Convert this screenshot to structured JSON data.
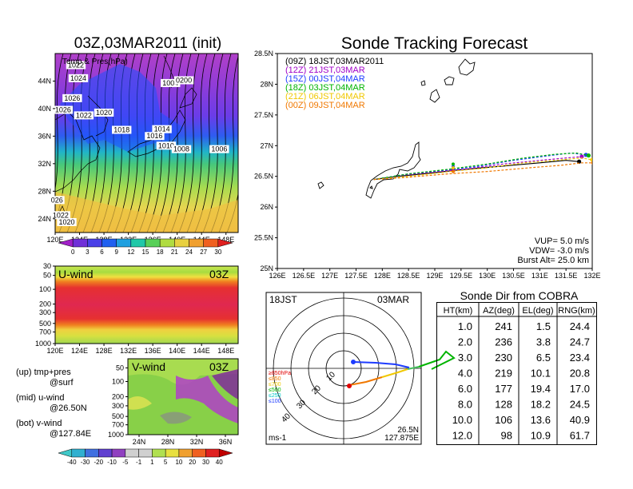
{
  "top_left_title": "03Z,03MAR2011 (init)",
  "main_title": "Sonde Tracking Forecast",
  "map_small": {
    "legend_text": "Temp & Pres(hPa)",
    "x_ticks": [
      "120E",
      "124E",
      "128E",
      "132E",
      "136E",
      "140E",
      "144E",
      "148E"
    ],
    "y_ticks": [
      "44N",
      "40N",
      "36N",
      "32N",
      "28N",
      "24N"
    ],
    "pressure_labels": [
      {
        "text": "1022",
        "lon": 123.4,
        "lat": 46.2
      },
      {
        "text": "1024",
        "lon": 123.8,
        "lat": 44.3
      },
      {
        "text": "1026",
        "lon": 122.8,
        "lat": 41.4
      },
      {
        "text": "1026",
        "lon": 121.3,
        "lat": 39.7
      },
      {
        "text": "1022",
        "lon": 124.7,
        "lat": 38.9
      },
      {
        "text": "1020",
        "lon": 128.0,
        "lat": 39.3
      },
      {
        "text": "1018",
        "lon": 130.9,
        "lat": 36.8
      },
      {
        "text": "1014",
        "lon": 137.5,
        "lat": 36.9
      },
      {
        "text": "1016",
        "lon": 136.3,
        "lat": 35.9
      },
      {
        "text": "1010",
        "lon": 138.2,
        "lat": 34.5
      },
      {
        "text": "1008",
        "lon": 140.7,
        "lat": 34.0
      },
      {
        "text": "1006",
        "lon": 146.9,
        "lat": 34.0
      },
      {
        "text": "1004",
        "lon": 138.9,
        "lat": 43.6
      },
      {
        "text": "0200",
        "lon": 141.1,
        "lat": 44.0
      },
      {
        "text": "026",
        "lon": 120.3,
        "lat": 26.6
      },
      {
        "text": "1022",
        "lon": 120.9,
        "lat": 24.4
      },
      {
        "text": "1020",
        "lon": 121.9,
        "lat": 23.4
      }
    ],
    "colorbar_labels": [
      "0",
      "3",
      "6",
      "9",
      "12",
      "15",
      "18",
      "21",
      "24",
      "27",
      "30"
    ]
  },
  "u_wind": {
    "label": "U-wind",
    "time": "03Z",
    "y_ticks": [
      "30",
      "50",
      "100",
      "200",
      "300",
      "500",
      "700",
      "1000"
    ],
    "x_ticks": [
      "120E",
      "124E",
      "128E",
      "132E",
      "136E",
      "140E",
      "144E",
      "148E"
    ]
  },
  "v_wind": {
    "label": "V-wind",
    "time": "03Z",
    "y_ticks": [
      "50",
      "100",
      "200",
      "300",
      "500",
      "700",
      "1000"
    ],
    "x_ticks": [
      "24N",
      "28N",
      "32N",
      "36N"
    ]
  },
  "notes": [
    {
      "line1": "(up) tmp+pres",
      "line2": "@surf"
    },
    {
      "line1": "(mid) u-wind",
      "line2": "@26.50N"
    },
    {
      "line1": "(bot) v-wind",
      "line2": "@127.84E"
    }
  ],
  "wind_colorbar_labels": [
    "-40",
    "-30",
    "-20",
    "-10",
    "-5",
    "-1",
    "1",
    "5",
    "10",
    "20",
    "30",
    "40"
  ],
  "track_map": {
    "x_ticks": [
      "126E",
      "126.5E",
      "127E",
      "127.5E",
      "128E",
      "128.5E",
      "129E",
      "129.5E",
      "130E",
      "130.5E",
      "131E",
      "131.5E",
      "132E"
    ],
    "y_ticks": [
      "28.5N",
      "28N",
      "27.5N",
      "27N",
      "26.5N",
      "26N",
      "25.5N",
      "25N"
    ],
    "legend": [
      {
        "text": "(09Z)  18JST,03MAR2011",
        "color": "#000000"
      },
      {
        "text": "(12Z)  21JST,03MAR",
        "color": "#a000c8"
      },
      {
        "text": "(15Z)  00JST,04MAR",
        "color": "#1e3cff"
      },
      {
        "text": "(18Z)  03JST,04MAR",
        "color": "#00b400"
      },
      {
        "text": "(21Z)  06JST,04MAR",
        "color": "#f0c800"
      },
      {
        "text": "(00Z)  09JST,04MAR",
        "color": "#f07800"
      }
    ],
    "params": [
      "VUP= 5.0 m/s",
      "VDW= -3.0 m/s",
      "Burst Alt= 25.0 km"
    ]
  },
  "polar": {
    "title_left": "18JST",
    "title_right": "03MAR",
    "ring_labels": [
      "10",
      "20",
      "30",
      "40"
    ],
    "level_labels": [
      {
        "text": "≥850hPa",
        "color": "#e00000"
      },
      {
        "text": "≤850",
        "color": "#f07800"
      },
      {
        "text": "≤700",
        "color": "#f0c800"
      },
      {
        "text": "≤500",
        "color": "#00b400"
      },
      {
        "text": "≤250",
        "color": "#00c8c8"
      },
      {
        "text": "≤100",
        "color": "#1e3cff"
      }
    ],
    "unit": "ms-1",
    "coord_lat": "26.5N",
    "coord_lon": "127.875E"
  },
  "table": {
    "title": "Sonde Dir from COBRA",
    "headers": [
      "HT(km)",
      "AZ(deg)",
      "EL(deg)",
      "RNG(km)"
    ],
    "rows": [
      [
        "1.0",
        "241",
        "1.5",
        "24.4"
      ],
      [
        "2.0",
        "236",
        "3.8",
        "24.7"
      ],
      [
        "3.0",
        "230",
        "6.5",
        "23.4"
      ],
      [
        "4.0",
        "219",
        "10.1",
        "20.8"
      ],
      [
        "6.0",
        "177",
        "19.4",
        "17.0"
      ],
      [
        "8.0",
        "128",
        "18.2",
        "24.5"
      ],
      [
        "10.0",
        "106",
        "13.6",
        "40.9"
      ],
      [
        "12.0",
        "98",
        "10.9",
        "61.7"
      ]
    ]
  },
  "chart_data": [
    {
      "type": "line",
      "title": "Sonde Tracking Forecast",
      "xlabel": "",
      "ylabel": "",
      "xlim": [
        126,
        132
      ],
      "ylim": [
        25,
        28.5
      ],
      "series": [
        {
          "name": "(09Z)  18JST,03MAR2011",
          "x": [
            127.84,
            128.3,
            129.0,
            129.4,
            130.2,
            131.0,
            131.5,
            131.75
          ],
          "y": [
            26.45,
            26.5,
            26.56,
            26.6,
            26.66,
            26.72,
            26.76,
            26.74
          ]
        },
        {
          "name": "(12Z)  21JST,03MAR",
          "x": [
            127.84,
            128.4,
            129.1,
            129.6,
            130.3,
            131.0,
            131.5,
            131.8
          ],
          "y": [
            26.45,
            26.52,
            26.58,
            26.62,
            26.7,
            26.76,
            26.8,
            26.82
          ]
        },
        {
          "name": "(15Z)  00JST,04MAR",
          "x": [
            127.84,
            128.5,
            129.2,
            129.8,
            130.5,
            131.2,
            131.6,
            131.88
          ],
          "y": [
            26.45,
            26.54,
            26.6,
            26.66,
            26.76,
            26.84,
            26.88,
            26.85
          ]
        },
        {
          "name": "(18Z)  03JST,04MAR",
          "x": [
            127.84,
            128.5,
            129.3,
            130.0,
            130.7,
            131.3,
            131.7,
            131.93
          ],
          "y": [
            26.45,
            26.54,
            26.62,
            26.7,
            26.8,
            26.86,
            26.88,
            26.84
          ]
        },
        {
          "name": "(21Z)  06JST,04MAR",
          "x": [
            127.84,
            128.5,
            129.3,
            130.0,
            130.7,
            131.3,
            131.8,
            132.0
          ],
          "y": [
            26.45,
            26.5,
            26.58,
            26.64,
            26.72,
            26.76,
            26.8,
            26.77
          ]
        },
        {
          "name": "(00Z)  09JST,04MAR",
          "x": [
            127.84,
            128.4,
            129.25,
            130.0,
            130.8,
            131.4,
            131.8,
            132.02
          ],
          "y": [
            26.45,
            26.48,
            26.54,
            26.58,
            26.64,
            26.68,
            26.72,
            26.72
          ]
        }
      ]
    },
    {
      "type": "table",
      "title": "Sonde Dir from COBRA",
      "headers": [
        "HT(km)",
        "AZ(deg)",
        "EL(deg)",
        "RNG(km)"
      ],
      "rows": [
        [
          "1.0",
          "241",
          "1.5",
          "24.4"
        ],
        [
          "2.0",
          "236",
          "3.8",
          "24.7"
        ],
        [
          "3.0",
          "230",
          "6.5",
          "23.4"
        ],
        [
          "4.0",
          "219",
          "10.1",
          "20.8"
        ],
        [
          "6.0",
          "177",
          "19.4",
          "17.0"
        ],
        [
          "8.0",
          "128",
          "18.2",
          "24.5"
        ],
        [
          "10.0",
          "106",
          "13.6",
          "40.9"
        ],
        [
          "12.0",
          "98",
          "10.9",
          "61.7"
        ]
      ]
    }
  ]
}
